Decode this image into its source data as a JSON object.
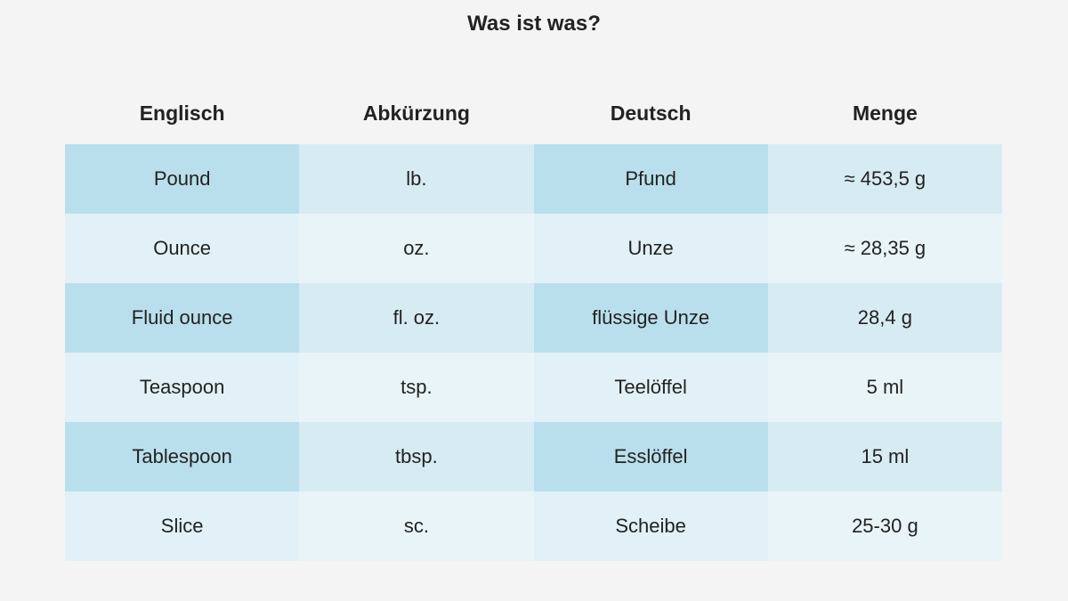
{
  "header": {
    "title": "Was ist was?"
  },
  "table": {
    "columns": [
      "Englisch",
      "Abkürzung",
      "Deutsch",
      "Menge"
    ],
    "rows": [
      [
        "Pound",
        "lb.",
        "Pfund",
        "≈ 453,5 g"
      ],
      [
        "Ounce",
        "oz.",
        "Unze",
        "≈ 28,35 g"
      ],
      [
        "Fluid ounce",
        "fl. oz.",
        "flüssige Unze",
        "28,4 g"
      ],
      [
        "Teaspoon",
        "tsp.",
        "Teelöffel",
        "5 ml"
      ],
      [
        "Tablespoon",
        "tbsp.",
        "Esslöffel",
        "15 ml"
      ],
      [
        "Slice",
        "sc.",
        "Scheibe",
        "25-30 g"
      ]
    ]
  }
}
